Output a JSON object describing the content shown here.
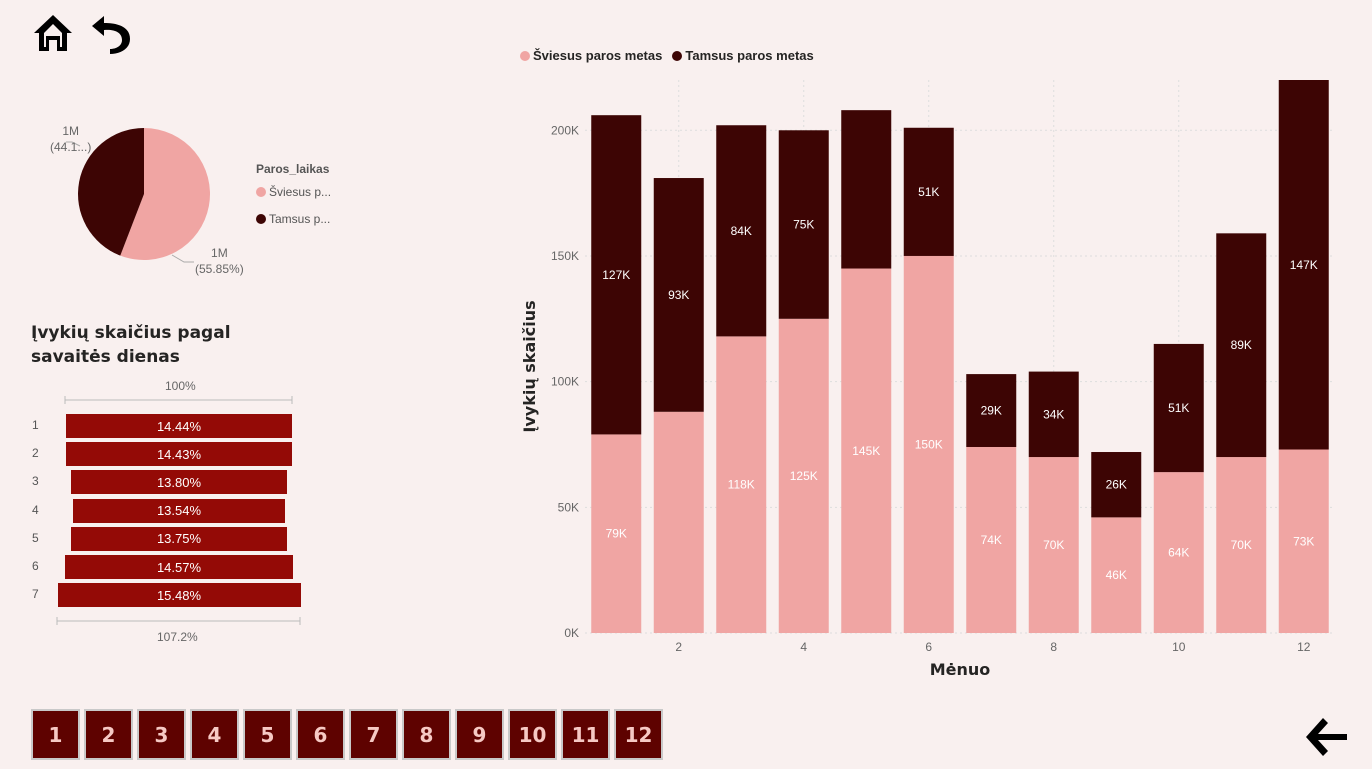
{
  "nav": {
    "home_icon": "home-icon",
    "undo_icon": "undo-icon",
    "back_icon": "arrow-left-icon"
  },
  "pie": {
    "legend_title": "Paros_laikas",
    "legend_items": [
      {
        "label": "Šviesus p...",
        "color": "#f0a5a3"
      },
      {
        "label": "Tamsus p...",
        "color": "#3d0504"
      }
    ],
    "label_dark_value": "1M",
    "label_dark_pct": "(44.1...)",
    "label_light_value": "1M",
    "label_light_pct": "(55.85%)"
  },
  "funnel": {
    "title": "Įvykių skaičius pagal savaitės dienas",
    "top_label": "100%",
    "bottom_label": "107.2%",
    "rows": [
      {
        "day": "1",
        "value": 14.44,
        "label": "14.44%"
      },
      {
        "day": "2",
        "value": 14.43,
        "label": "14.43%"
      },
      {
        "day": "3",
        "value": 13.8,
        "label": "13.80%"
      },
      {
        "day": "4",
        "value": 13.54,
        "label": "13.54%"
      },
      {
        "day": "5",
        "value": 13.75,
        "label": "13.75%"
      },
      {
        "day": "6",
        "value": 14.57,
        "label": "14.57%"
      },
      {
        "day": "7",
        "value": 15.48,
        "label": "15.48%"
      }
    ]
  },
  "chart_data": [
    {
      "type": "pie",
      "categories": [
        "Šviesus paros metas",
        "Tamsus paros metas"
      ],
      "values": [
        55.85,
        44.15
      ],
      "colors": [
        "#f0a5a3",
        "#3d0504"
      ]
    },
    {
      "type": "bar",
      "title": "Įvykių skaičius pagal savaitės dienas",
      "categories": [
        "1",
        "2",
        "3",
        "4",
        "5",
        "6",
        "7"
      ],
      "values": [
        14.44,
        14.43,
        13.8,
        13.54,
        13.75,
        14.57,
        15.48
      ]
    },
    {
      "type": "bar",
      "stacked": true,
      "xlabel": "Mėnuo",
      "ylabel": "Įvykių skaičius",
      "ylim": [
        0,
        220000
      ],
      "yticks": [
        "0K",
        "50K",
        "100K",
        "150K",
        "200K"
      ],
      "xticks": [
        "2",
        "4",
        "6",
        "8",
        "10",
        "12"
      ],
      "categories": [
        "1",
        "2",
        "3",
        "4",
        "5",
        "6",
        "7",
        "8",
        "9",
        "10",
        "11",
        "12"
      ],
      "legend_position": "top-left",
      "series": [
        {
          "name": "Šviesus paros metas",
          "color": "#f0a5a3",
          "values": [
            79000,
            88000,
            118000,
            125000,
            145000,
            150000,
            74000,
            70000,
            46000,
            64000,
            70000,
            73000
          ],
          "labels": [
            "79K",
            "",
            "118K",
            "125K",
            "145K",
            "150K",
            "74K",
            "70K",
            "46K",
            "64K",
            "70K",
            "73K"
          ]
        },
        {
          "name": "Tamsus paros metas",
          "color": "#3d0504",
          "values": [
            127000,
            93000,
            84000,
            75000,
            63000,
            51000,
            29000,
            34000,
            26000,
            51000,
            89000,
            147000
          ],
          "labels": [
            "127K",
            "93K",
            "84K",
            "75K",
            "",
            "51K",
            "29K",
            "34K",
            "26K",
            "51K",
            "89K",
            "147K"
          ]
        }
      ]
    }
  ],
  "pages": [
    "1",
    "2",
    "3",
    "4",
    "5",
    "6",
    "7",
    "8",
    "9",
    "10",
    "11",
    "12"
  ]
}
